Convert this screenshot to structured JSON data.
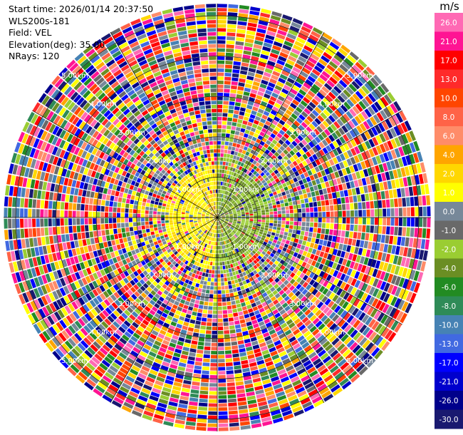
{
  "header": {
    "start_time": "Start time: 2026/01/14 20:37:50",
    "instrument": "WLS200s-181",
    "field": "Field: VEL",
    "elevation": "Elevation(deg): 35.00",
    "nrays": "NRays: 120"
  },
  "chart_data": {
    "type": "heatmap",
    "subtype": "polar-ppi",
    "field": "VEL",
    "units": "m/s",
    "nrays": 120,
    "elevation_deg": 35.0,
    "range_rings_km": [
      1,
      2,
      3,
      4,
      5
    ],
    "ring_labels": [
      "1.00km",
      "2.00km",
      "3.00km",
      "4.00km",
      "5.00km"
    ],
    "max_range_km": 5.3,
    "colorbar": {
      "ticks": [
        "26.0",
        "21.0",
        "17.0",
        "13.0",
        "10.0",
        "8.0",
        "6.0",
        "4.0",
        "2.0",
        "1.0",
        "0.0",
        "-1.0",
        "-2.0",
        "-4.0",
        "-6.0",
        "-8.0",
        "-10.0",
        "-13.0",
        "-17.0",
        "-21.0",
        "-26.0",
        "-30.0"
      ],
      "colors": [
        "#ff69b4",
        "#ff1493",
        "#ff0000",
        "#ff2a2a",
        "#ff4500",
        "#ff6347",
        "#ff8c69",
        "#ffa500",
        "#ffd700",
        "#ffff00",
        "#778899",
        "#696969",
        "#9acd32",
        "#6b8e23",
        "#228b22",
        "#2e8b57",
        "#4682b4",
        "#4169e1",
        "#0000ff",
        "#0000cd",
        "#00008b",
        "#191970"
      ]
    },
    "regions": {
      "near_field_radius_km": 1.3,
      "west_near_velocity": 2.0,
      "east_near_velocity": -2.0
    }
  }
}
